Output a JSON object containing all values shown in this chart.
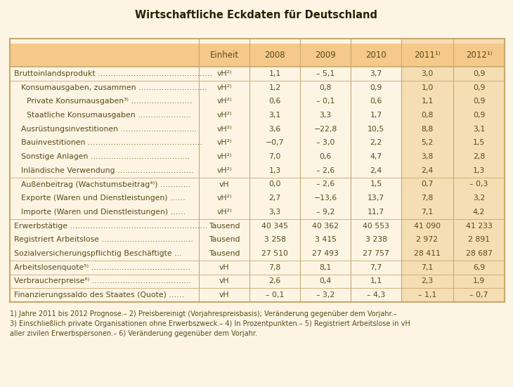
{
  "title": "Wirtschaftliche Eckdaten für Deutschland",
  "bg_color": "#fdf5e4",
  "header_bg": "#f5c98a",
  "highlight_bg": "#f5deb3",
  "border_color": "#c8a86e",
  "rows": [
    {
      "label": "Bruttoinlandsprodukt ………………………………………",
      "unit": "vH²⁾",
      "v2008": "1,1",
      "v2009": "– 5,1",
      "v2010": "3,7",
      "v2011": "3,0",
      "v2012": "0,9",
      "indent": 0,
      "sep_before": false
    },
    {
      "label": "Konsumausgaben, zusammen ………………………",
      "unit": "vH²⁾",
      "v2008": "1,2",
      "v2009": "0,8",
      "v2010": "0,9",
      "v2011": "1,0",
      "v2012": "0,9",
      "indent": 1,
      "sep_before": true
    },
    {
      "label": "Private Konsumausgaben³⁾ ……………………",
      "unit": "vH²⁾",
      "v2008": "0,6",
      "v2009": "– 0,1",
      "v2010": "0,6",
      "v2011": "1,1",
      "v2012": "0,9",
      "indent": 2,
      "sep_before": false
    },
    {
      "label": "Staatliche Konsumausgaben …………………",
      "unit": "vH²⁾",
      "v2008": "3,1",
      "v2009": "3,3",
      "v2010": "1,7",
      "v2011": "0,8",
      "v2012": "0,9",
      "indent": 2,
      "sep_before": false
    },
    {
      "label": "Ausrüstungsinvestitionen …………………………",
      "unit": "vH²⁾",
      "v2008": "3,6",
      "v2009": "−22,8",
      "v2010": "10,5",
      "v2011": "8,8",
      "v2012": "3,1",
      "indent": 1,
      "sep_before": false
    },
    {
      "label": "Bauinvestitionen ………………………………………",
      "unit": "vH²⁾",
      "v2008": "−0,7",
      "v2009": "– 3,0",
      "v2010": "2,2",
      "v2011": "5,2",
      "v2012": "1,5",
      "indent": 1,
      "sep_before": false
    },
    {
      "label": "Sonstige Anlagen …………………………………",
      "unit": "vH²⁾",
      "v2008": "7,0",
      "v2009": "0,6",
      "v2010": "4,7",
      "v2011": "3,8",
      "v2012": "2,8",
      "indent": 1,
      "sep_before": false
    },
    {
      "label": "Inländische Verwendung …………………………",
      "unit": "vH²⁾",
      "v2008": "1,3",
      "v2009": "– 2,6",
      "v2010": "2,4",
      "v2011": "2,4",
      "v2012": "1,3",
      "indent": 1,
      "sep_before": false
    },
    {
      "label": "Außenbeitrag (Wachstumsbeitrag⁴⁾) …………",
      "unit": "vH",
      "v2008": "0,0",
      "v2009": "– 2,6",
      "v2010": "1,5",
      "v2011": "0,7",
      "v2012": "– 0,3",
      "indent": 1,
      "sep_before": true
    },
    {
      "label": "Exporte (Waren und Dienstleistungen) ……",
      "unit": "vH²⁾",
      "v2008": "2,7",
      "v2009": "−13,6",
      "v2010": "13,7",
      "v2011": "7,8",
      "v2012": "3,2",
      "indent": 1,
      "sep_before": false
    },
    {
      "label": "Importe (Waren und Dienstleistungen) ……",
      "unit": "vH²⁾",
      "v2008": "3,3",
      "v2009": "– 9,2",
      "v2010": "11,7",
      "v2011": "7,1",
      "v2012": "4,2",
      "indent": 1,
      "sep_before": false
    },
    {
      "label": "Erwerbstätige ………………………………………………",
      "unit": "Tausend",
      "v2008": "40 345",
      "v2009": "40 362",
      "v2010": "40 553",
      "v2011": "41 090",
      "v2012": "41 233",
      "indent": 0,
      "sep_before": true
    },
    {
      "label": "Registriert Arbeitslose ………………………………",
      "unit": "Tausend",
      "v2008": "3 258",
      "v2009": "3 415",
      "v2010": "3 238",
      "v2011": "2 972",
      "v2012": "2 891",
      "indent": 0,
      "sep_before": false
    },
    {
      "label": "Sozialversicherungspflichtig Beschäftigte …",
      "unit": "Tausend",
      "v2008": "27 510",
      "v2009": "27 493",
      "v2010": "27 757",
      "v2011": "28 411",
      "v2012": "28 687",
      "indent": 0,
      "sep_before": false
    },
    {
      "label": "Arbeitslosenquote⁵⁾ …………………………………",
      "unit": "vH",
      "v2008": "7,8",
      "v2009": "8,1",
      "v2010": "7,7",
      "v2011": "7,1",
      "v2012": "6,9",
      "indent": 0,
      "sep_before": true
    },
    {
      "label": "Verbraucherpreise⁶⁾ …………………………………",
      "unit": "vH",
      "v2008": "2,6",
      "v2009": "0,4",
      "v2010": "1,1",
      "v2011": "2,3",
      "v2012": "1,9",
      "indent": 0,
      "sep_before": true
    },
    {
      "label": "Finanzierungssaldo des Staates (Quote) ……",
      "unit": "vH",
      "v2008": "– 0,1",
      "v2009": "– 3,2",
      "v2010": "– 4,3",
      "v2011": "– 1,1",
      "v2012": "– 0,7",
      "indent": 0,
      "sep_before": true
    }
  ],
  "footnotes": [
    "1) Jahre 2011 bis 2012 Prognose.– 2) Preisbereinigt (Vorjahrespreisbasis); Veränderung gegenüber dem Vorjahr.–",
    "3) Einschließlich private Organisationen ohne Erwerbszweck.– 4) In Prozentpunkten.– 5) Registriert Arbeitslose in vH",
    "aller zivilen Erwerbspersonen.– 6) Veränderung gegenüber dem Vorjahr."
  ],
  "text_color": "#5a4a1a",
  "title_color": "#2a2000",
  "col_header_display": [
    "Einheit",
    "2008",
    "2009",
    "2010",
    "2011¹⁾",
    "2012¹⁾"
  ]
}
